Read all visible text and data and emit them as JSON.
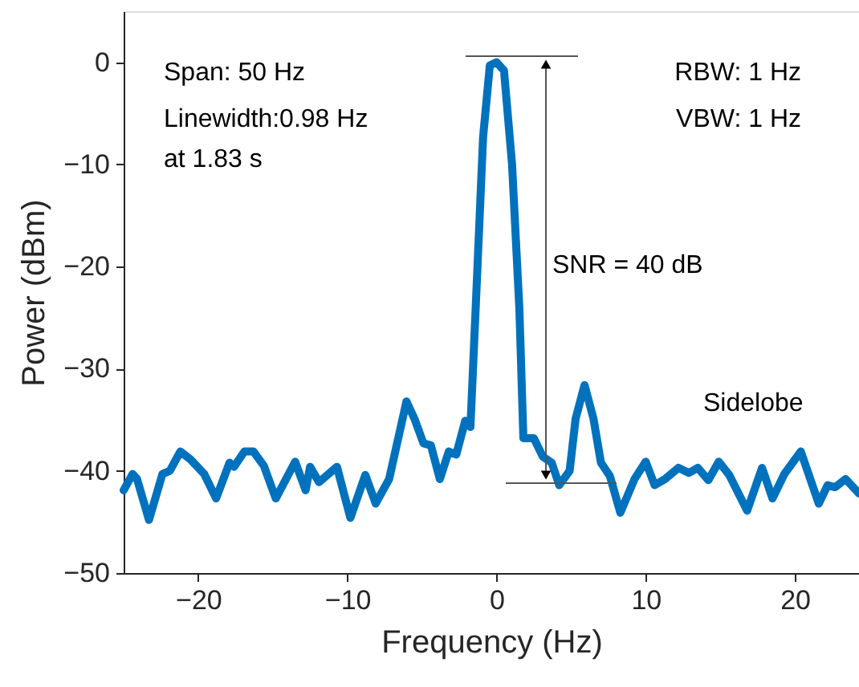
{
  "chart_data": {
    "type": "line",
    "xlabel": "Frequency (Hz)",
    "ylabel": "Power (dBm)",
    "xlim": [
      -25,
      24.3
    ],
    "xticks": [
      -20,
      -10,
      0,
      10,
      20
    ],
    "ylim": [
      -50,
      5
    ],
    "yticks": [
      0,
      -10,
      -20,
      -30,
      -40,
      -50
    ],
    "grid": false,
    "marker": "none",
    "line_style": "solid",
    "annotations": [
      "Span: 50 Hz",
      "Linewidth:0.98 Hz",
      "at 1.83 s",
      "RBW: 1 Hz",
      "VBW: 1 Hz",
      "SNR = 40 dB",
      "Sidelobe"
    ],
    "series": [
      {
        "color": "#0072bd",
        "x": [
          -25,
          -24.4,
          -24.1,
          -23.3,
          -22.4,
          -21.9,
          -21.2,
          -20.5,
          -19.6,
          -18.8,
          -17.9,
          -17.6,
          -16.9,
          -16.3,
          -15.6,
          -14.8,
          -13.5,
          -12.8,
          -12.5,
          -11.9,
          -10.7,
          -9.8,
          -8.8,
          -8.1,
          -7.2,
          -6.04,
          -5.5,
          -4.9,
          -4.4,
          -3.8,
          -3.2,
          -2.7,
          -2.1,
          -1.75,
          -1.4,
          -0.9,
          -0.45,
          0,
          0.5,
          1.04,
          1.53,
          1.8,
          2.5,
          3.1,
          3.7,
          4.2,
          4.9,
          5.3,
          5.9,
          6.5,
          7.0,
          7.6,
          8.3,
          9.25,
          10,
          10.6,
          11.3,
          12.2,
          12.9,
          13.5,
          14.2,
          14.9,
          15.6,
          16.8,
          17.8,
          18.5,
          19.3,
          20.4,
          21.6,
          22.2,
          22.7,
          23.4,
          24.3
        ],
        "values": [
          -41.9,
          -40.3,
          -40.8,
          -44.8,
          -40.3,
          -40,
          -38.1,
          -38.9,
          -40.3,
          -42.7,
          -39.2,
          -39.6,
          -38.1,
          -38.1,
          -39.5,
          -42.7,
          -39.1,
          -41.9,
          -39.6,
          -41.1,
          -39.6,
          -44.6,
          -40.4,
          -43.2,
          -40.8,
          -33.2,
          -34.9,
          -37.3,
          -37.5,
          -40.8,
          -38.1,
          -38.4,
          -35.1,
          -35.7,
          -24.1,
          -7.3,
          -0.3,
          0,
          -0.8,
          -10,
          -24.1,
          -36.8,
          -36.8,
          -38.6,
          -39.2,
          -41.4,
          -40,
          -34.9,
          -31.6,
          -34.9,
          -39.2,
          -40.5,
          -44.1,
          -40.8,
          -39.1,
          -41.4,
          -40.8,
          -39.7,
          -40.2,
          -39.7,
          -40.9,
          -39.1,
          -40.4,
          -43.9,
          -39.7,
          -42.7,
          -40.3,
          -38.1,
          -43.2,
          -41.4,
          -41.6,
          -40.8,
          -42.2
        ]
      }
    ]
  }
}
